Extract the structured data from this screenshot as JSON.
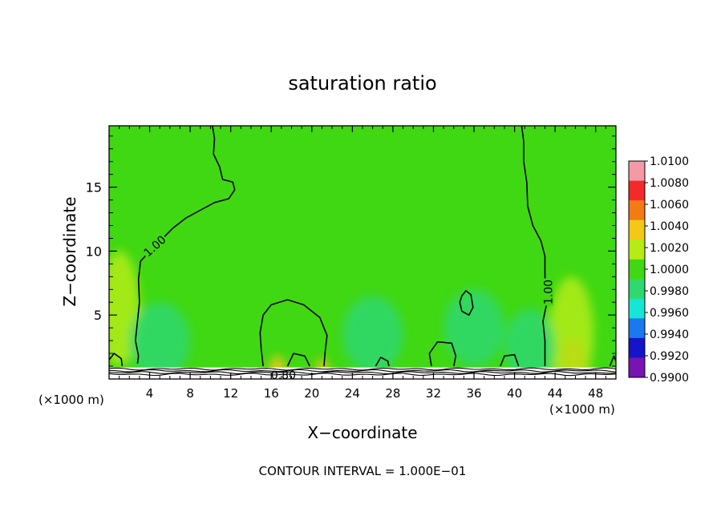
{
  "chart_data": {
    "type": "heatmap",
    "title": "saturation ratio",
    "xlabel": "X−coordinate",
    "ylabel": "Z−coordinate",
    "x_unit_left": "(×1000 m)",
    "x_unit_right": "(×1000 m)",
    "footer": "CONTOUR INTERVAL = 1.000E−01",
    "xlim": [
      0,
      50
    ],
    "ylim": [
      0,
      19.8
    ],
    "x_ticks": [
      4,
      8,
      12,
      16,
      20,
      24,
      28,
      32,
      36,
      40,
      44,
      48
    ],
    "x_tick_labels": [
      "4",
      "8",
      "12",
      "16",
      "20",
      "24",
      "28",
      "32",
      "36",
      "40",
      "44",
      "48"
    ],
    "y_ticks": [
      5,
      10,
      15
    ],
    "y_tick_labels": [
      "5",
      "10",
      "15"
    ],
    "contour_labels": [
      {
        "text": "1.00",
        "x": 4.5,
        "y": 10.4,
        "angle": -42
      },
      {
        "text": "1.00",
        "x": 43.3,
        "y": 6.8,
        "angle": -90
      },
      {
        "text": "0.80",
        "x": 17.2,
        "y": 0.3,
        "angle": 0
      }
    ],
    "colorbar": {
      "levels": [
        "1.0100",
        "1.0080",
        "1.0060",
        "1.0040",
        "1.0020",
        "1.0000",
        "0.9980",
        "0.9960",
        "0.9940",
        "0.9920",
        "0.9900"
      ],
      "colors": [
        "#f49aa6",
        "#f42a2a",
        "#f47a14",
        "#f4c814",
        "#b4ec14",
        "#40d812",
        "#30d870",
        "#14e8d4",
        "#1a78f0",
        "#1414c8",
        "#7814b4"
      ]
    },
    "background_value": 1.0005,
    "surface_z": 0.9,
    "blobs": [
      {
        "x": 45.8,
        "z": 1.2,
        "rx": 1.3,
        "rz": 2.0,
        "value": 1.0078
      },
      {
        "x": 45.6,
        "z": 3.5,
        "rx": 2.2,
        "rz": 4.5,
        "value": 1.003
      },
      {
        "x": 1.0,
        "z": 5.5,
        "rx": 2.0,
        "rz": 4.5,
        "value": 1.0025
      },
      {
        "x": 5.0,
        "z": 3.0,
        "rx": 3.0,
        "rz": 3.0,
        "value": 0.9982
      },
      {
        "x": 41.5,
        "z": 2.5,
        "rx": 2.5,
        "rz": 3.0,
        "value": 0.998
      },
      {
        "x": 16.6,
        "z": 0.9,
        "rx": 0.8,
        "rz": 0.9,
        "value": 1.0055
      },
      {
        "x": 21.0,
        "z": 0.9,
        "rx": 0.6,
        "rz": 0.7,
        "value": 1.004
      },
      {
        "x": 26.0,
        "z": 3.5,
        "rx": 3.0,
        "rz": 3.0,
        "value": 0.9987
      },
      {
        "x": 36.0,
        "z": 4.0,
        "rx": 3.0,
        "rz": 3.0,
        "value": 0.9987
      }
    ],
    "contours_1_00": [
      [
        [
          10.2,
          19.8
        ],
        [
          10.4,
          18.8
        ],
        [
          10.3,
          17.6
        ],
        [
          10.9,
          16.6
        ],
        [
          11.2,
          15.6
        ],
        [
          12.2,
          15.4
        ],
        [
          12.4,
          14.8
        ],
        [
          11.8,
          14.1
        ],
        [
          10.4,
          13.8
        ],
        [
          9.0,
          13.2
        ],
        [
          7.6,
          12.6
        ],
        [
          6.3,
          11.8
        ],
        [
          5.3,
          11.0
        ],
        [
          4.0,
          10.0
        ],
        [
          3.1,
          9.2
        ],
        [
          2.9,
          7.8
        ],
        [
          3.0,
          6.0
        ],
        [
          2.8,
          4.5
        ],
        [
          2.6,
          3.0
        ],
        [
          2.9,
          1.8
        ],
        [
          2.8,
          1.2
        ]
      ],
      [
        [
          40.7,
          19.8
        ],
        [
          40.9,
          18.6
        ],
        [
          40.9,
          17.0
        ],
        [
          41.2,
          15.4
        ],
        [
          41.3,
          13.5
        ],
        [
          41.8,
          12.0
        ],
        [
          42.6,
          10.8
        ],
        [
          43.0,
          9.6
        ],
        [
          43.0,
          8.0
        ],
        [
          43.2,
          6.0
        ],
        [
          42.8,
          4.5
        ],
        [
          43.0,
          3.0
        ],
        [
          43.0,
          1.0
        ]
      ],
      [
        [
          15.2,
          1.0
        ],
        [
          15.0,
          2.4
        ],
        [
          14.9,
          3.6
        ],
        [
          15.2,
          5.0
        ],
        [
          16.0,
          5.8
        ],
        [
          17.6,
          6.2
        ],
        [
          19.2,
          5.8
        ],
        [
          20.8,
          4.8
        ],
        [
          21.5,
          3.4
        ],
        [
          21.3,
          2.0
        ],
        [
          21.2,
          1.0
        ]
      ],
      [
        [
          31.8,
          1.0
        ],
        [
          31.6,
          2.0
        ],
        [
          32.4,
          2.9
        ],
        [
          33.8,
          2.8
        ],
        [
          34.2,
          1.8
        ],
        [
          34.0,
          1.0
        ]
      ],
      [
        [
          34.8,
          6.5
        ],
        [
          34.6,
          6.0
        ],
        [
          34.8,
          5.3
        ],
        [
          35.5,
          5.0
        ],
        [
          35.9,
          5.6
        ],
        [
          35.7,
          6.6
        ],
        [
          35.2,
          6.9
        ],
        [
          34.8,
          6.5
        ]
      ],
      [
        [
          0.0,
          1.5
        ],
        [
          0.5,
          2.0
        ],
        [
          1.2,
          1.6
        ],
        [
          1.3,
          1.0
        ]
      ],
      [
        [
          38.6,
          1.0
        ],
        [
          39.0,
          1.8
        ],
        [
          40.0,
          1.9
        ],
        [
          40.4,
          1.0
        ]
      ],
      [
        [
          26.3,
          1.0
        ],
        [
          26.8,
          1.7
        ],
        [
          27.5,
          1.4
        ],
        [
          27.6,
          1.0
        ]
      ],
      [
        [
          17.6,
          1.0
        ],
        [
          18.2,
          2.0
        ],
        [
          19.3,
          1.8
        ],
        [
          19.8,
          1.0
        ]
      ],
      [
        [
          49.4,
          1.0
        ],
        [
          49.8,
          1.8
        ],
        [
          50.0,
          1.4
        ]
      ]
    ]
  }
}
